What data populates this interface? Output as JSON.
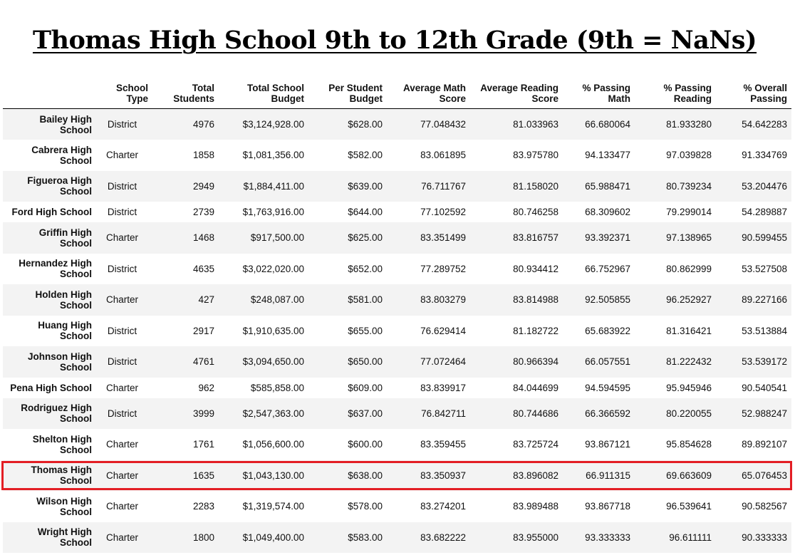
{
  "title": "Thomas High School 9th to 12th Grade (9th = NaNs)",
  "columns": [
    "",
    "School Type",
    "Total Students",
    "Total School Budget",
    "Per Student Budget",
    "Average Math Score",
    "Average Reading Score",
    "% Passing Math",
    "% Passing Reading",
    "% Overall Passing"
  ],
  "column_lines": [
    [
      ""
    ],
    [
      "School",
      "Type"
    ],
    [
      "Total",
      "Students"
    ],
    [
      "Total School",
      "Budget"
    ],
    [
      "Per Student",
      "Budget"
    ],
    [
      "Average Math",
      "Score"
    ],
    [
      "Average Reading",
      "Score"
    ],
    [
      "% Passing",
      "Math"
    ],
    [
      "% Passing",
      "Reading"
    ],
    [
      "% Overall",
      "Passing"
    ]
  ],
  "rows": [
    {
      "name": [
        "Bailey High",
        "School"
      ],
      "type": "District",
      "students": "4976",
      "budget": "$3,124,928.00",
      "per_student": "$628.00",
      "math": "77.048432",
      "reading": "81.033963",
      "pass_math": "66.680064",
      "pass_reading": "81.933280",
      "overall": "54.642283"
    },
    {
      "name": [
        "Cabrera High",
        "School"
      ],
      "type": "Charter",
      "students": "1858",
      "budget": "$1,081,356.00",
      "per_student": "$582.00",
      "math": "83.061895",
      "reading": "83.975780",
      "pass_math": "94.133477",
      "pass_reading": "97.039828",
      "overall": "91.334769"
    },
    {
      "name": [
        "Figueroa High",
        "School"
      ],
      "type": "District",
      "students": "2949",
      "budget": "$1,884,411.00",
      "per_student": "$639.00",
      "math": "76.711767",
      "reading": "81.158020",
      "pass_math": "65.988471",
      "pass_reading": "80.739234",
      "overall": "53.204476"
    },
    {
      "name": [
        "Ford High School"
      ],
      "type": "District",
      "students": "2739",
      "budget": "$1,763,916.00",
      "per_student": "$644.00",
      "math": "77.102592",
      "reading": "80.746258",
      "pass_math": "68.309602",
      "pass_reading": "79.299014",
      "overall": "54.289887"
    },
    {
      "name": [
        "Griffin High",
        "School"
      ],
      "type": "Charter",
      "students": "1468",
      "budget": "$917,500.00",
      "per_student": "$625.00",
      "math": "83.351499",
      "reading": "83.816757",
      "pass_math": "93.392371",
      "pass_reading": "97.138965",
      "overall": "90.599455"
    },
    {
      "name": [
        "Hernandez High",
        "School"
      ],
      "type": "District",
      "students": "4635",
      "budget": "$3,022,020.00",
      "per_student": "$652.00",
      "math": "77.289752",
      "reading": "80.934412",
      "pass_math": "66.752967",
      "pass_reading": "80.862999",
      "overall": "53.527508"
    },
    {
      "name": [
        "Holden High",
        "School"
      ],
      "type": "Charter",
      "students": "427",
      "budget": "$248,087.00",
      "per_student": "$581.00",
      "math": "83.803279",
      "reading": "83.814988",
      "pass_math": "92.505855",
      "pass_reading": "96.252927",
      "overall": "89.227166"
    },
    {
      "name": [
        "Huang High",
        "School"
      ],
      "type": "District",
      "students": "2917",
      "budget": "$1,910,635.00",
      "per_student": "$655.00",
      "math": "76.629414",
      "reading": "81.182722",
      "pass_math": "65.683922",
      "pass_reading": "81.316421",
      "overall": "53.513884"
    },
    {
      "name": [
        "Johnson High",
        "School"
      ],
      "type": "District",
      "students": "4761",
      "budget": "$3,094,650.00",
      "per_student": "$650.00",
      "math": "77.072464",
      "reading": "80.966394",
      "pass_math": "66.057551",
      "pass_reading": "81.222432",
      "overall": "53.539172"
    },
    {
      "name": [
        "Pena High School"
      ],
      "type": "Charter",
      "students": "962",
      "budget": "$585,858.00",
      "per_student": "$609.00",
      "math": "83.839917",
      "reading": "84.044699",
      "pass_math": "94.594595",
      "pass_reading": "95.945946",
      "overall": "90.540541"
    },
    {
      "name": [
        "Rodriguez High",
        "School"
      ],
      "type": "District",
      "students": "3999",
      "budget": "$2,547,363.00",
      "per_student": "$637.00",
      "math": "76.842711",
      "reading": "80.744686",
      "pass_math": "66.366592",
      "pass_reading": "80.220055",
      "overall": "52.988247"
    },
    {
      "name": [
        "Shelton High",
        "School"
      ],
      "type": "Charter",
      "students": "1761",
      "budget": "$1,056,600.00",
      "per_student": "$600.00",
      "math": "83.359455",
      "reading": "83.725724",
      "pass_math": "93.867121",
      "pass_reading": "95.854628",
      "overall": "89.892107"
    },
    {
      "name": [
        "Thomas High",
        "School"
      ],
      "type": "Charter",
      "students": "1635",
      "budget": "$1,043,130.00",
      "per_student": "$638.00",
      "math": "83.350937",
      "reading": "83.896082",
      "pass_math": "66.911315",
      "pass_reading": "69.663609",
      "overall": "65.076453",
      "highlighted": true
    },
    {
      "name": [
        "Wilson High",
        "School"
      ],
      "type": "Charter",
      "students": "2283",
      "budget": "$1,319,574.00",
      "per_student": "$578.00",
      "math": "83.274201",
      "reading": "83.989488",
      "pass_math": "93.867718",
      "pass_reading": "96.539641",
      "overall": "90.582567"
    },
    {
      "name": [
        "Wright High",
        "School"
      ],
      "type": "Charter",
      "students": "1800",
      "budget": "$1,049,400.00",
      "per_student": "$583.00",
      "math": "83.682222",
      "reading": "83.955000",
      "pass_math": "93.333333",
      "pass_reading": "96.611111",
      "overall": "90.333333"
    }
  ],
  "highlight_color": "#e31e24"
}
